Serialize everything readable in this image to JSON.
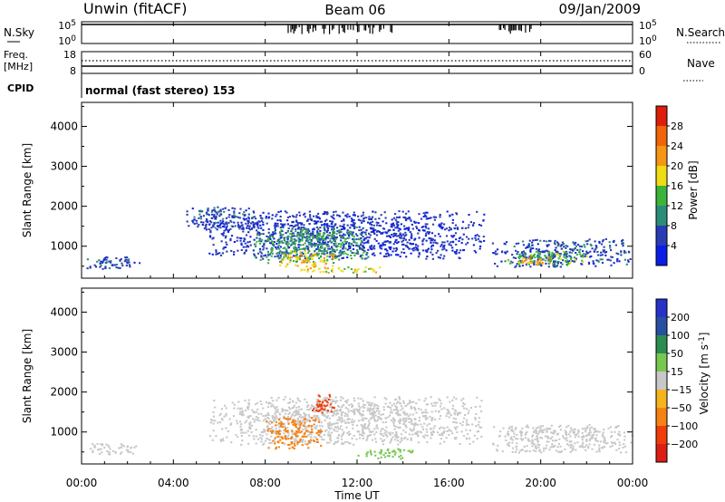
{
  "header": {
    "site": "Unwin (fitACF)",
    "beam": "Beam 06",
    "date": "09/Jan/2009"
  },
  "noise_panel": {
    "left_label": "N.Sky",
    "left_ticks": [
      "10^5",
      "10^0"
    ],
    "right_ticks": [
      "10^5",
      "10^0"
    ],
    "right_label": "N.Search"
  },
  "freq_panel": {
    "left_label_line1": "Freq.",
    "left_label_line2": "[MHz]",
    "left_ticks": [
      "18",
      "8"
    ],
    "right_ticks": [
      "60",
      "0"
    ],
    "right_label": "Nave"
  },
  "cpid": {
    "label": "CPID",
    "value": "normal (fast stereo) 153"
  },
  "colors": {
    "power": [
      "#0a1ee6",
      "#283cb4",
      "#2d8c78",
      "#3cb43c",
      "#f0dc14",
      "#f59614",
      "#f0640a",
      "#dc1e0a"
    ],
    "velocity": [
      "#dc1e14",
      "#f03c0a",
      "#f58214",
      "#f5b41e",
      "#c8c8c8",
      "#78c850",
      "#2d8c50",
      "#2850a0",
      "#2832c8"
    ]
  },
  "x_ticks": [
    "00:00",
    "04:00",
    "08:00",
    "12:00",
    "16:00",
    "20:00",
    "00:00"
  ],
  "xlabel": "Time UT",
  "chart_data": [
    {
      "type": "heatmap",
      "ylabel": "Slant Range [km]",
      "y_ticks": [
        "1000",
        "2000",
        "3000",
        "4000"
      ],
      "ylim": [
        200,
        4600
      ],
      "xlim_hours": [
        0,
        24
      ],
      "colorbar": {
        "label": "Power [dB]",
        "ticks": [
          "4",
          "8",
          "12",
          "16",
          "20",
          "24",
          "28"
        ]
      },
      "echo_regions": [
        {
          "t0": 0.0,
          "t1": 2.5,
          "r0": 450,
          "r1": 750,
          "value": 6
        },
        {
          "t0": 4.5,
          "t1": 8.0,
          "r0": 1400,
          "r1": 2000,
          "value": 6
        },
        {
          "t0": 5.5,
          "t1": 17.5,
          "r0": 700,
          "r1": 1900,
          "value": 5
        },
        {
          "t0": 7.5,
          "t1": 12.5,
          "r0": 600,
          "r1": 1500,
          "value": 12
        },
        {
          "t0": 8.5,
          "t1": 11.0,
          "r0": 500,
          "r1": 900,
          "value": 20
        },
        {
          "t0": 9.0,
          "t1": 13.0,
          "r0": 350,
          "r1": 500,
          "value": 18
        },
        {
          "t0": 17.8,
          "t1": 24.0,
          "r0": 500,
          "r1": 1200,
          "value": 6
        },
        {
          "t0": 18.5,
          "t1": 22.0,
          "r0": 550,
          "r1": 900,
          "value": 14
        },
        {
          "t0": 19.0,
          "t1": 20.5,
          "r0": 550,
          "r1": 750,
          "value": 22
        }
      ]
    },
    {
      "type": "heatmap",
      "ylabel": "Slant Range [km]",
      "y_ticks": [
        "1000",
        "2000",
        "3000",
        "4000"
      ],
      "ylim": [
        200,
        4600
      ],
      "xlim_hours": [
        0,
        24
      ],
      "colorbar": {
        "label": "Velocity [m s^-1]",
        "ticks": [
          "200",
          "100",
          "50",
          "15",
          "-15",
          "-50",
          "-100",
          "-200"
        ]
      },
      "echo_regions": [
        {
          "t0": 0.0,
          "t1": 2.5,
          "r0": 450,
          "r1": 750,
          "value": 0
        },
        {
          "t0": 5.5,
          "t1": 17.5,
          "r0": 700,
          "r1": 1900,
          "value": 0
        },
        {
          "t0": 8.0,
          "t1": 10.5,
          "r0": 600,
          "r1": 1400,
          "value": -80
        },
        {
          "t0": 10.0,
          "t1": 11.0,
          "r0": 1500,
          "r1": 2000,
          "value": -150
        },
        {
          "t0": 12.0,
          "t1": 14.5,
          "r0": 350,
          "r1": 600,
          "value": 30
        },
        {
          "t0": 17.8,
          "t1": 24.0,
          "r0": 500,
          "r1": 1200,
          "value": 0
        }
      ]
    }
  ]
}
